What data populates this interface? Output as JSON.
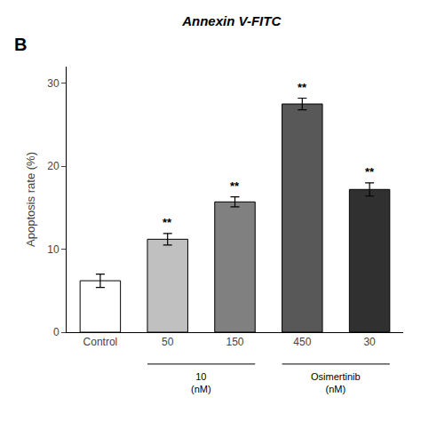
{
  "chart_data": {
    "type": "bar",
    "title": "Annexin V-FITC",
    "panel_label": "B",
    "categories": [
      "Control",
      "50",
      "150",
      "450",
      "30"
    ],
    "values": [
      6.2,
      11.2,
      15.7,
      27.5,
      17.2
    ],
    "errors": [
      0.8,
      0.7,
      0.6,
      0.7,
      0.8
    ],
    "colors": [
      "#ffffff",
      "#c0c0c0",
      "#808080",
      "#585858",
      "#303030"
    ],
    "significance": [
      null,
      "**",
      "**",
      "**",
      "**"
    ],
    "ylabel": "Apoptosis rate (%)",
    "ylim": [
      0,
      32
    ],
    "yticks": [
      0,
      10,
      20,
      30
    ],
    "grid": false,
    "groups": [
      {
        "categories": [
          "50",
          "150"
        ],
        "label": [
          "10",
          "(nM)"
        ]
      },
      {
        "categories": [
          "450",
          "30"
        ],
        "label": [
          "Osimertinib",
          "(nM)"
        ]
      }
    ]
  }
}
